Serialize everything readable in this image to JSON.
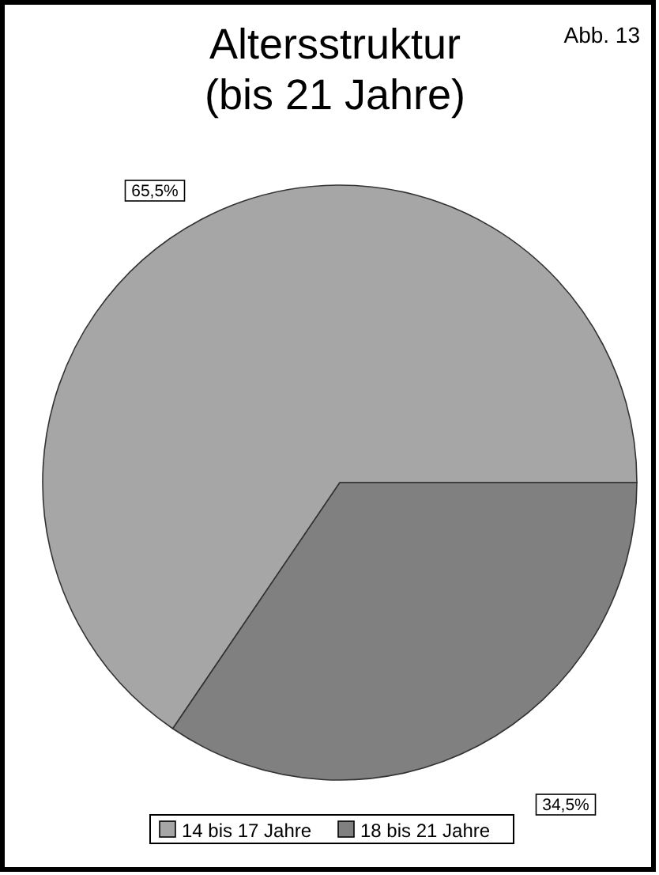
{
  "chart_data": {
    "type": "pie",
    "title": "Altersstruktur\n(bis 21 Jahre)",
    "annotations": [
      "Abb. 13"
    ],
    "categories": [
      "14 bis 17 Jahre",
      "18 bis 21 Jahre"
    ],
    "values": [
      65.5,
      34.5
    ],
    "value_labels": [
      "65,5%",
      "34,5%"
    ],
    "colors": [
      "#a6a6a6",
      "#808080"
    ],
    "legend": "bottom"
  }
}
